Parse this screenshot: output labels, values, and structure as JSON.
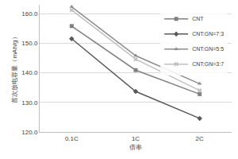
{
  "chart_data": {
    "type": "line",
    "x_label": "倍率",
    "y_label": "首次放电容量（mAh/g）",
    "categories": [
      "0.1C",
      "1C",
      "2C"
    ],
    "series": [
      {
        "name": "CNT",
        "color": "#808080",
        "marker": "square",
        "values": [
          155.8,
          140.9,
          132.8
        ]
      },
      {
        "name": "CNT:GN=7:3",
        "color": "#595959",
        "marker": "diamond",
        "values": [
          151.5,
          133.7,
          124.6
        ]
      },
      {
        "name": "CNT:GN=5:5",
        "color": "#8c8c8c",
        "marker": "triangle-up",
        "values": [
          162.3,
          145.8,
          136.3
        ]
      },
      {
        "name": "CNT:GN=3:7",
        "color": "#c0c0c0",
        "marker": "x",
        "values": [
          161.2,
          144.6,
          134.0
        ]
      }
    ],
    "ylim": [
      120,
      163
    ],
    "yticks": [
      {
        "value": 120,
        "label": "120.0"
      },
      {
        "value": 130,
        "label": "130.0"
      },
      {
        "value": 140,
        "label": "140.0"
      },
      {
        "value": 150,
        "label": "150.0"
      },
      {
        "value": 160,
        "label": "160.0"
      }
    ],
    "grid": true,
    "legend": "top-right"
  }
}
